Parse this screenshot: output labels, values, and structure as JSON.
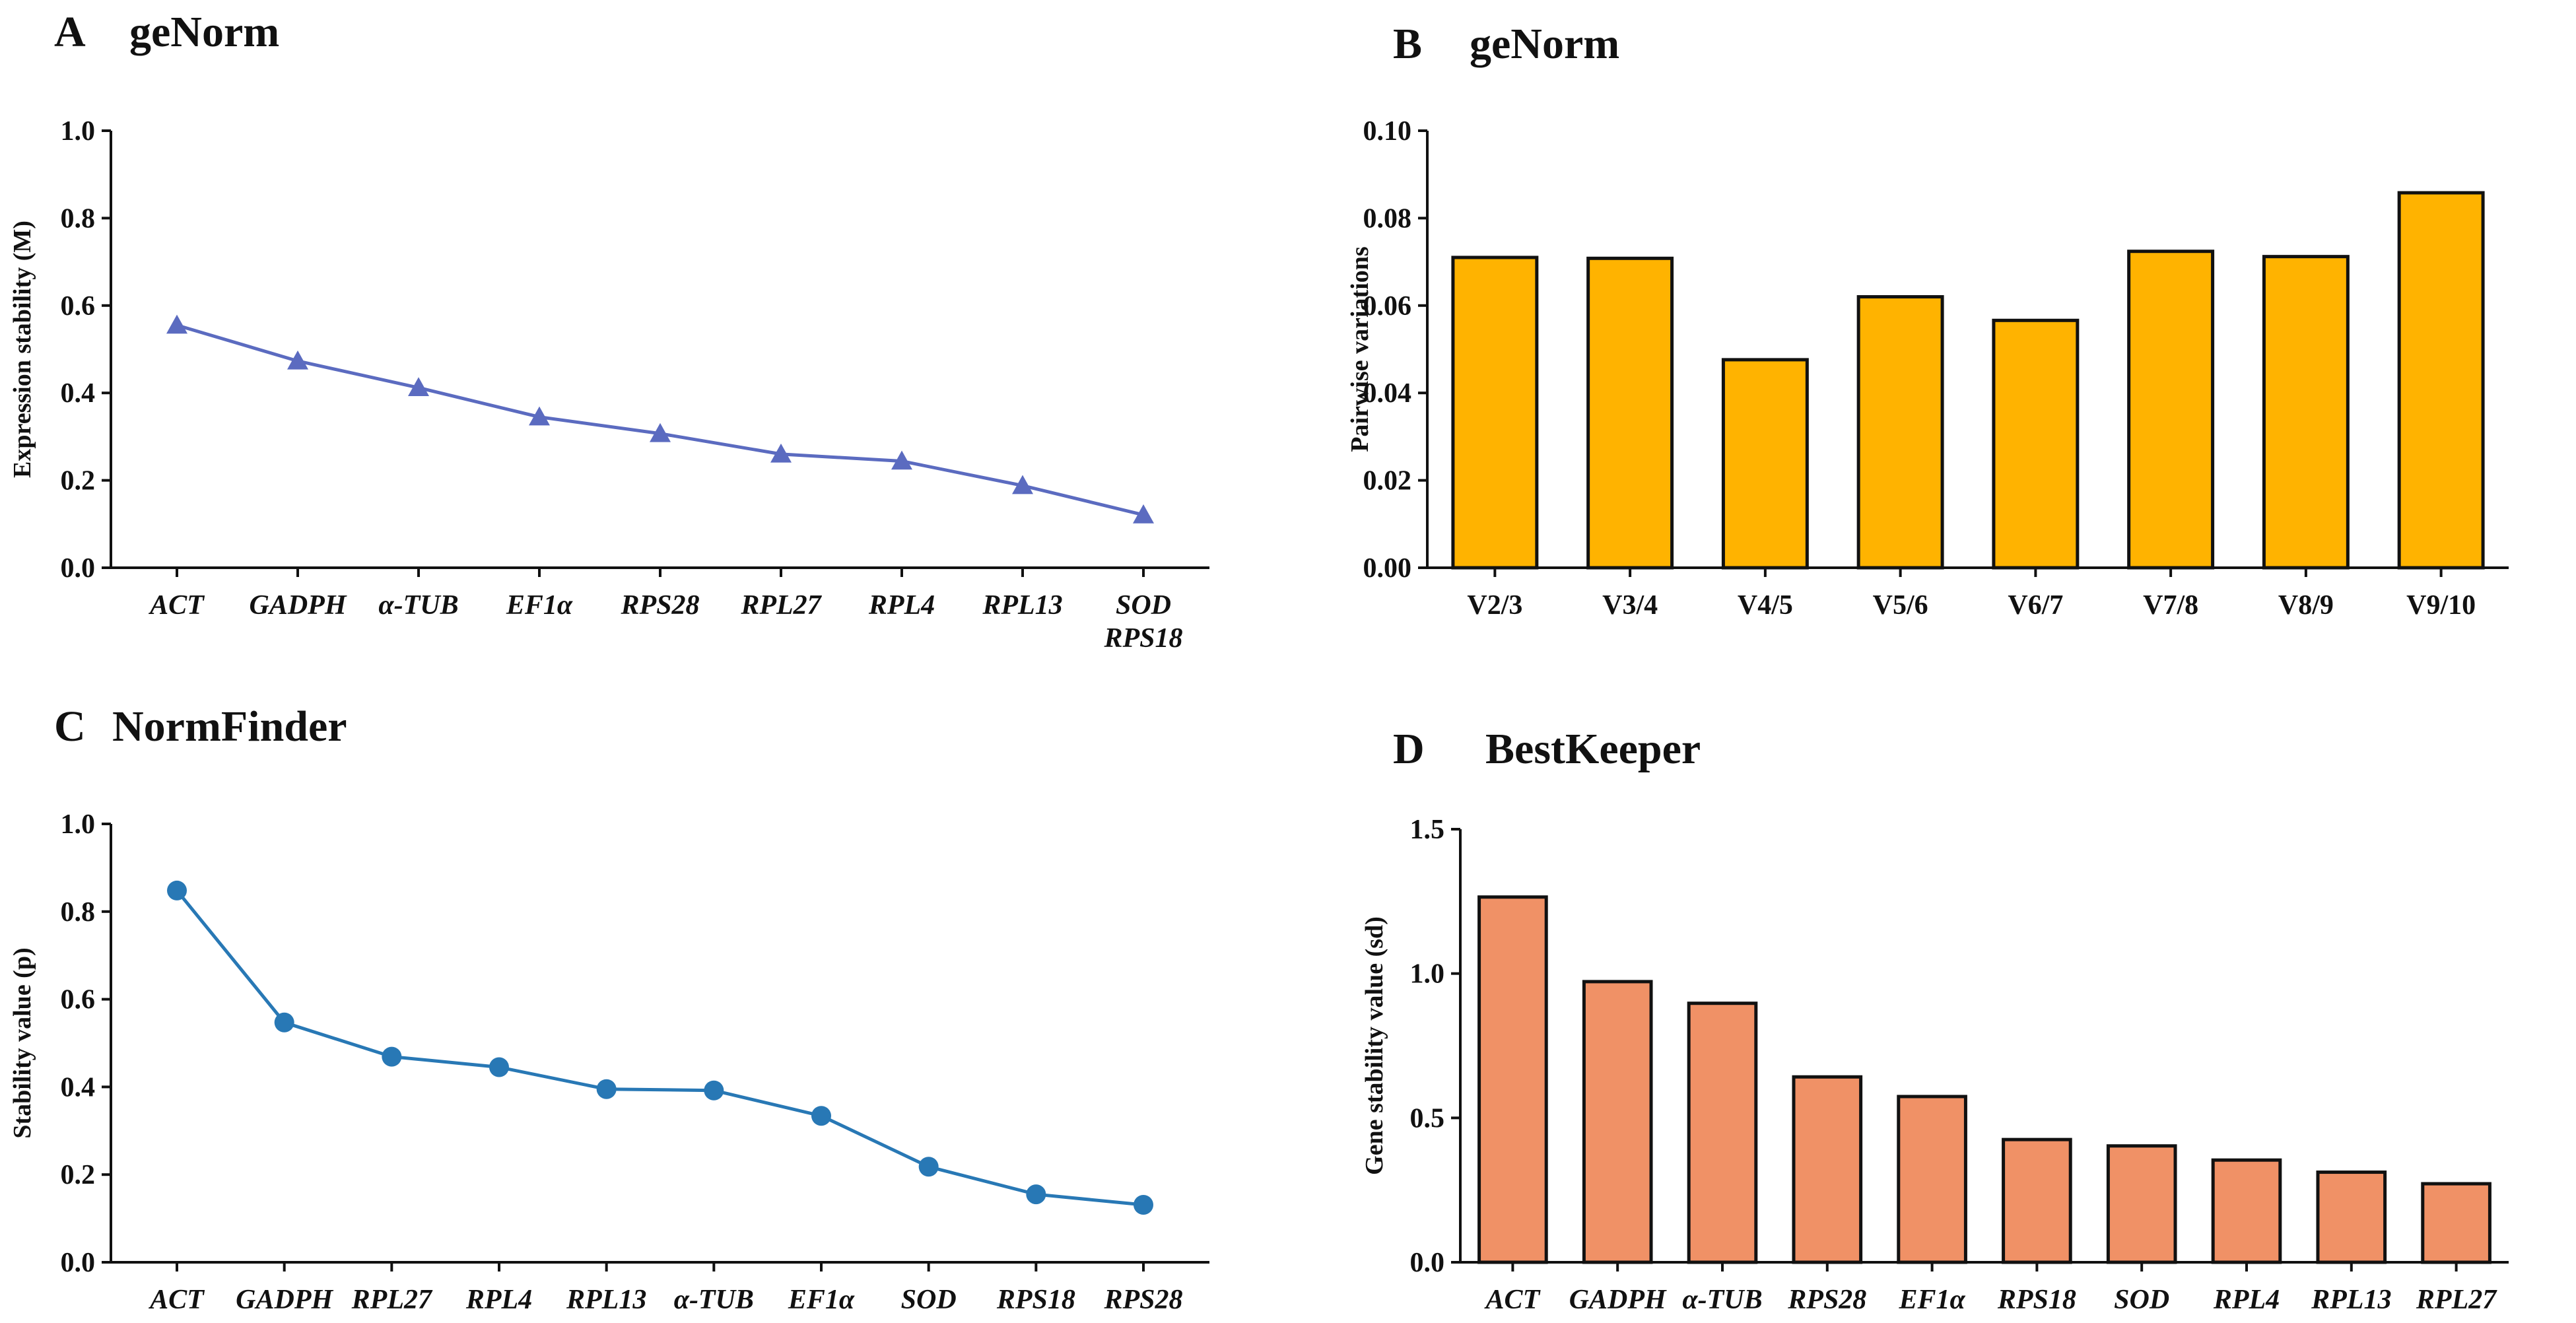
{
  "chart_data": [
    {
      "id": "A",
      "type": "line",
      "letter": "A",
      "title": "geNorm",
      "marker": "triangle",
      "color": "#5b6bc0",
      "italic_categories": true,
      "xlabel": "",
      "ylabel": "Expression stability (M)",
      "ylim": [
        0,
        1.0
      ],
      "yticks": [
        "0.0",
        "0.2",
        "0.4",
        "0.6",
        "0.8",
        "1.0"
      ],
      "categories": [
        "ACT",
        "GADPH",
        "α-TUB",
        "EF1α",
        "RPS28",
        "RPL27",
        "RPL4",
        "RPL13",
        [
          "SOD",
          "RPS18"
        ]
      ],
      "values": [
        0.555,
        0.473,
        0.412,
        0.345,
        0.307,
        0.26,
        0.244,
        0.188,
        0.121
      ]
    },
    {
      "id": "B",
      "type": "bar",
      "letter": "B",
      "title": "geNorm",
      "color": "#ffb300",
      "italic_categories": false,
      "xlabel": "",
      "ylabel": "Pairwise variations",
      "ylim": [
        0,
        0.1
      ],
      "yticks": [
        "0.00",
        "0.02",
        "0.04",
        "0.06",
        "0.08",
        "0.10"
      ],
      "categories": [
        "V2/3",
        "V3/4",
        "V4/5",
        "V5/6",
        "V6/7",
        "V7/8",
        "V8/9",
        "V9/10"
      ],
      "values": [
        0.071,
        0.0708,
        0.0476,
        0.062,
        0.0566,
        0.0724,
        0.0712,
        0.0858
      ]
    },
    {
      "id": "C",
      "type": "line",
      "letter": "C",
      "title": "NormFinder",
      "marker": "circle",
      "color": "#2878b5",
      "italic_categories": true,
      "xlabel": "",
      "ylabel": "Stability value (p)",
      "ylim": [
        0,
        1.0
      ],
      "yticks": [
        "0.0",
        "0.2",
        "0.4",
        "0.6",
        "0.8",
        "1.0"
      ],
      "categories": [
        "ACT",
        "GADPH",
        "RPL27",
        "RPL4",
        "RPL13",
        "α-TUB",
        "EF1α",
        "SOD",
        "RPS18",
        "RPS28"
      ],
      "values": [
        0.848,
        0.547,
        0.469,
        0.445,
        0.395,
        0.392,
        0.334,
        0.218,
        0.155,
        0.131
      ]
    },
    {
      "id": "D",
      "type": "bar",
      "letter": "D",
      "title": "BestKeeper",
      "color": "#f09166",
      "italic_categories": true,
      "xlabel": "",
      "ylabel": "Gene stability value (sd)",
      "ylim": [
        0,
        1.5
      ],
      "yticks": [
        "0.0",
        "0.5",
        "1.0",
        "1.5"
      ],
      "categories": [
        "ACT",
        "GADPH",
        "α-TUB",
        "RPS28",
        "EF1α",
        "RPS18",
        "SOD",
        "RPL4",
        "RPL13",
        "RPL27"
      ],
      "values": [
        1.265,
        0.972,
        0.897,
        0.642,
        0.574,
        0.425,
        0.403,
        0.354,
        0.312,
        0.272
      ]
    }
  ]
}
